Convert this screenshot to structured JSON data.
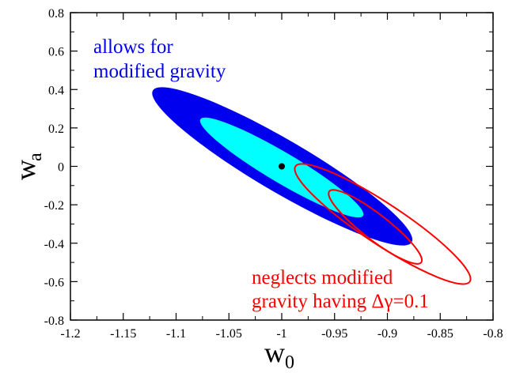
{
  "chart_data": {
    "type": "contour",
    "xlabel": "w",
    "xlabel_sub": "0",
    "ylabel": "w",
    "ylabel_sub": "a",
    "xlim": [
      -1.2,
      -0.8
    ],
    "ylim": [
      -0.8,
      0.8
    ],
    "xticks": [
      -1.2,
      -1.15,
      -1.1,
      -1.05,
      -1,
      -0.95,
      -0.9,
      -0.85,
      -0.8
    ],
    "yticks": [
      -0.8,
      -0.6,
      -0.4,
      -0.2,
      0,
      0.2,
      0.4,
      0.6,
      0.8
    ],
    "xtick_labels": [
      "-1.2",
      "-1.15",
      "-1.1",
      "-1.05",
      "-1",
      "-0.95",
      "-0.9",
      "-0.85",
      "-0.8"
    ],
    "ytick_labels": [
      "-0.8",
      "-0.6",
      "-0.4",
      "-0.2",
      "0",
      "0.2",
      "0.4",
      "0.6",
      "0.8"
    ],
    "grid": false,
    "fiducial_point": {
      "x": -1.0,
      "y": 0.0
    },
    "regions": [
      {
        "label_lines": [
          "allows for",
          "modified gravity"
        ],
        "color_outer": "#0000ee",
        "color_inner": "#00ffff",
        "style": "filled",
        "outer_contour": {
          "center": [
            -1.0,
            0.0
          ],
          "tip_a": [
            -1.122,
            0.395
          ],
          "tip_b": [
            -0.877,
            -0.395
          ],
          "half_width": 0.045
        },
        "inner_contour": {
          "center": [
            -1.0,
            -0.006
          ],
          "tip_a": [
            -1.077,
            0.245
          ],
          "tip_b": [
            -0.923,
            -0.257
          ],
          "half_width": 0.026
        }
      },
      {
        "label_lines": [
          "neglects modified",
          "gravity having Δγ=0.1"
        ],
        "color": "#ff0000",
        "style": "outline",
        "outer_contour": {
          "center": [
            -0.915,
            -0.3
          ],
          "tip_a": [
            -0.987,
            0.0
          ],
          "tip_b": [
            -0.822,
            -0.6
          ],
          "half_width": 0.035
        },
        "inner_contour": {
          "center": [
            -0.915,
            -0.28
          ],
          "tip_a": [
            -0.955,
            -0.13
          ],
          "tip_b": [
            -0.868,
            -0.5
          ],
          "half_width": 0.022
        }
      }
    ],
    "annotation_colors": {
      "blue_region": "#0000ee",
      "red_region": "#ff0000"
    }
  }
}
